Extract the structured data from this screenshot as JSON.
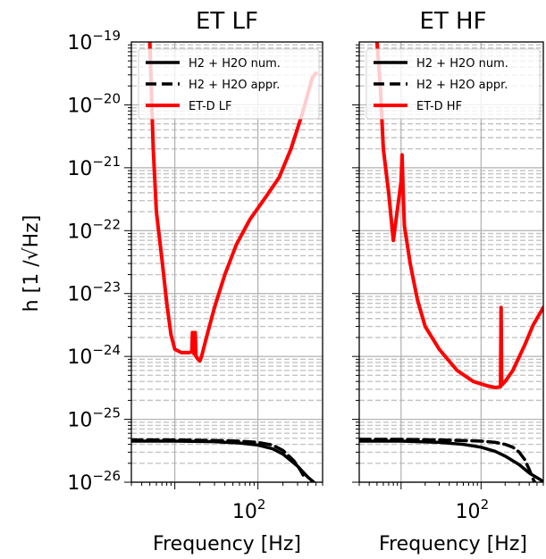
{
  "chart_data": [
    {
      "type": "line",
      "title": "ET LF",
      "xlabel": "Frequency [Hz]",
      "ylabel": "h [1 /√Hz]",
      "x_scale": "log",
      "y_scale": "log",
      "xlim": [
        3,
        600
      ],
      "ylim": [
        1e-26,
        1e-19
      ],
      "x_tick_labels": [
        {
          "value": 100,
          "base": "10",
          "exp": "2"
        }
      ],
      "y_tick_labels": [
        {
          "value": 1e-19,
          "base": "10",
          "exp": "−19"
        },
        {
          "value": 1e-20,
          "base": "10",
          "exp": "−20"
        },
        {
          "value": 1e-21,
          "base": "10",
          "exp": "−21"
        },
        {
          "value": 1e-22,
          "base": "10",
          "exp": "−22"
        },
        {
          "value": 1e-23,
          "base": "10",
          "exp": "−23"
        },
        {
          "value": 1e-24,
          "base": "10",
          "exp": "−24"
        },
        {
          "value": 1e-25,
          "base": "10",
          "exp": "−25"
        },
        {
          "value": 1e-26,
          "base": "10",
          "exp": "−26"
        }
      ],
      "grid": true,
      "legend_position": "top-right",
      "series": [
        {
          "name": "H2 + H2O num.",
          "color": "#000000",
          "dash": "solid",
          "points": [
            [
              3,
              4.5e-26
            ],
            [
              10,
              4.5e-26
            ],
            [
              30,
              4.4e-26
            ],
            [
              60,
              4.2e-26
            ],
            [
              100,
              3.9e-26
            ],
            [
              150,
              3.4e-26
            ],
            [
              200,
              2.8e-26
            ],
            [
              300,
              1.8e-26
            ],
            [
              400,
              1.2e-26
            ],
            [
              470,
              1e-26
            ]
          ]
        },
        {
          "name": "H2 + H2O appr.",
          "color": "#000000",
          "dash": "dashed",
          "points": [
            [
              3,
              4.7e-26
            ],
            [
              10,
              4.7e-26
            ],
            [
              30,
              4.6e-26
            ],
            [
              60,
              4.5e-26
            ],
            [
              100,
              4.3e-26
            ],
            [
              150,
              3.9e-26
            ],
            [
              200,
              3.2e-26
            ],
            [
              270,
              2.2e-26
            ],
            [
              320,
              1.6e-26
            ],
            [
              350,
              1.3e-26
            ]
          ]
        },
        {
          "name": "ET-D LF",
          "color": "#ff0000",
          "dash": "solid",
          "points": [
            [
              5,
              1e-19
            ],
            [
              5.5,
              2e-21
            ],
            [
              6,
              2e-22
            ],
            [
              7,
              3.5e-23
            ],
            [
              8,
              7e-24
            ],
            [
              9,
              2.2e-24
            ],
            [
              10,
              1.3e-24
            ],
            [
              12,
              1.15e-24
            ],
            [
              15,
              1.15e-24
            ],
            [
              16,
              1.2e-24
            ],
            [
              16.3,
              2.4e-24
            ],
            [
              16.6,
              1.2e-24
            ],
            [
              17,
              1.1e-24
            ],
            [
              17.6,
              2.4e-24
            ],
            [
              18,
              1e-24
            ],
            [
              19,
              9e-25
            ],
            [
              20,
              8.5e-25
            ],
            [
              21,
              1e-24
            ],
            [
              24,
              2e-24
            ],
            [
              30,
              6e-24
            ],
            [
              40,
              2e-23
            ],
            [
              55,
              6e-23
            ],
            [
              80,
              1.5e-22
            ],
            [
              120,
              3.2e-22
            ],
            [
              180,
              7e-22
            ],
            [
              250,
              2e-21
            ],
            [
              350,
              8e-21
            ],
            [
              450,
              2.7e-20
            ],
            [
              500,
              3.2e-20
            ]
          ]
        }
      ]
    },
    {
      "type": "line",
      "title": "ET HF",
      "xlabel": "Frequency [Hz]",
      "ylabel": "",
      "x_scale": "log",
      "y_scale": "log",
      "xlim": [
        3,
        600
      ],
      "ylim": [
        1e-26,
        1e-19
      ],
      "x_tick_labels": [
        {
          "value": 100,
          "base": "10",
          "exp": "2"
        }
      ],
      "grid": true,
      "legend_position": "top-right",
      "series": [
        {
          "name": "H2 + H2O num.",
          "color": "#000000",
          "dash": "solid",
          "points": [
            [
              3,
              4.5e-26
            ],
            [
              10,
              4.5e-26
            ],
            [
              30,
              4.3e-26
            ],
            [
              60,
              4e-26
            ],
            [
              100,
              3.6e-26
            ],
            [
              150,
              3.1e-26
            ],
            [
              200,
              2.6e-26
            ],
            [
              300,
              1.9e-26
            ],
            [
              400,
              1.4e-26
            ],
            [
              550,
              1.1e-26
            ],
            [
              600,
              1e-26
            ]
          ]
        },
        {
          "name": "H2 + H2O appr.",
          "color": "#000000",
          "dash": "dashed",
          "points": [
            [
              3,
              4.8e-26
            ],
            [
              10,
              4.8e-26
            ],
            [
              30,
              4.7e-26
            ],
            [
              60,
              4.6e-26
            ],
            [
              100,
              4.5e-26
            ],
            [
              150,
              4.3e-26
            ],
            [
              200,
              4e-26
            ],
            [
              250,
              3.6e-26
            ],
            [
              300,
              3e-26
            ],
            [
              350,
              2.3e-26
            ],
            [
              400,
              1.6e-26
            ],
            [
              450,
              1.1e-26
            ],
            [
              470,
              1e-26
            ]
          ]
        },
        {
          "name": "ET-D HF",
          "color": "#ff0000",
          "dash": "solid",
          "points": [
            [
              5,
              1e-19
            ],
            [
              5.5,
              2e-20
            ],
            [
              6,
              2e-21
            ],
            [
              7,
              4e-22
            ],
            [
              8,
              7e-23
            ],
            [
              10,
              6e-22
            ],
            [
              10.3,
              1.6e-21
            ],
            [
              10.6,
              4.5e-22
            ],
            [
              11,
              1.2e-22
            ],
            [
              13,
              3e-23
            ],
            [
              16,
              8e-24
            ],
            [
              20,
              3e-24
            ],
            [
              30,
              1.3e-24
            ],
            [
              50,
              6e-25
            ],
            [
              80,
              4e-25
            ],
            [
              120,
              3.4e-25
            ],
            [
              150,
              3.2e-25
            ],
            [
              175,
              3.3e-25
            ],
            [
              178,
              6e-24
            ],
            [
              181,
              3.5e-25
            ],
            [
              200,
              4e-25
            ],
            [
              250,
              6e-25
            ],
            [
              350,
              1.5e-24
            ],
            [
              450,
              3.2e-24
            ],
            [
              600,
              6e-24
            ]
          ]
        }
      ]
    }
  ]
}
